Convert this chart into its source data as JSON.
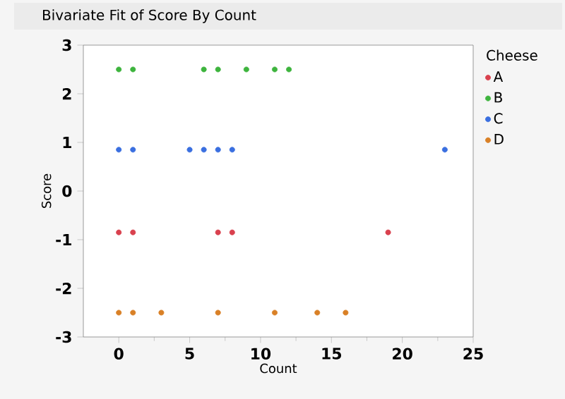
{
  "chart_data": {
    "type": "scatter",
    "title": "Bivariate Fit of Score By Count",
    "xlabel": "Count",
    "ylabel": "Score",
    "legend_title": "Cheese",
    "legend": "right",
    "grid": false,
    "xlim": [
      -2.5,
      25
    ],
    "ylim": [
      -3,
      3
    ],
    "xticks": [
      0,
      5,
      10,
      15,
      20,
      25
    ],
    "yticks": [
      -3,
      -2,
      -1,
      0,
      1,
      2,
      3
    ],
    "series": [
      {
        "name": "A",
        "color": "#d9414e",
        "x": [
          0,
          1,
          7,
          8,
          19
        ],
        "values": [
          -0.85,
          -0.85,
          -0.85,
          -0.85,
          -0.85
        ]
      },
      {
        "name": "B",
        "color": "#3db43d",
        "x": [
          0,
          1,
          6,
          7,
          9,
          11,
          12
        ],
        "values": [
          2.5,
          2.5,
          2.5,
          2.5,
          2.5,
          2.5,
          2.5
        ]
      },
      {
        "name": "C",
        "color": "#3a6fe0",
        "x": [
          0,
          1,
          5,
          6,
          7,
          8,
          23
        ],
        "values": [
          0.85,
          0.85,
          0.85,
          0.85,
          0.85,
          0.85,
          0.85
        ]
      },
      {
        "name": "D",
        "color": "#d98026",
        "x": [
          0,
          1,
          3,
          7,
          11,
          14,
          16
        ],
        "values": [
          -2.5,
          -2.5,
          -2.5,
          -2.5,
          -2.5,
          -2.5,
          -2.5
        ]
      }
    ]
  }
}
